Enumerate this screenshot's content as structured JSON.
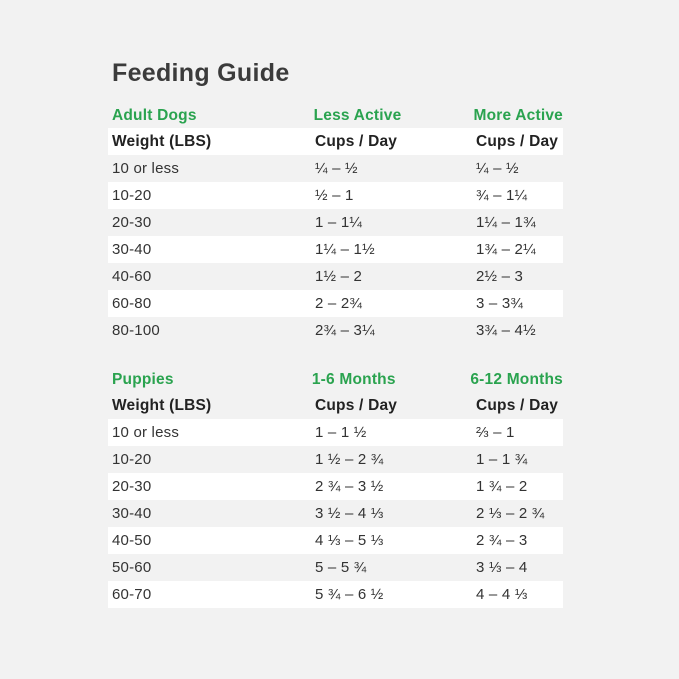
{
  "page": {
    "title": "Feeding Guide",
    "background_color": "#f2f2f2",
    "accent_green": "#2aa34f"
  },
  "tables": [
    {
      "section": "Adult Dogs",
      "col2_header": "Less Active",
      "col3_header": "More Active",
      "subheader": {
        "col1": "Weight (LBS)",
        "col2": "Cups / Day",
        "col3": "Cups / Day"
      },
      "rows": [
        {
          "weight": "10 or less",
          "col2": "¼ – ½",
          "col3": "¼ – ½"
        },
        {
          "weight": "10-20",
          "col2": "½ – 1",
          "col3": "¾ – 1¼"
        },
        {
          "weight": "20-30",
          "col2": "1 – 1¼",
          "col3": "1¼ – 1¾"
        },
        {
          "weight": "30-40",
          "col2": "1¼ – 1½",
          "col3": "1¾ – 2¼"
        },
        {
          "weight": "40-60",
          "col2": "1½ – 2",
          "col3": "2½ – 3"
        },
        {
          "weight": "60-80",
          "col2": "2 – 2¾",
          "col3": "3 – 3¾"
        },
        {
          "weight": "80-100",
          "col2": "2¾ – 3¼",
          "col3": "3¾ – 4½"
        }
      ]
    },
    {
      "section": "Puppies",
      "col2_header": "1-6 Months",
      "col3_header": "6-12 Months",
      "subheader": {
        "col1": "Weight (LBS)",
        "col2": "Cups / Day",
        "col3": "Cups / Day"
      },
      "rows": [
        {
          "weight": "10 or less",
          "col2": "1 – 1 ½",
          "col3": "⅔ – 1"
        },
        {
          "weight": "10-20",
          "col2": "1 ½ – 2 ¾",
          "col3": "1 – 1 ¾"
        },
        {
          "weight": "20-30",
          "col2": "2 ¾ – 3 ½",
          "col3": "1 ¾ – 2"
        },
        {
          "weight": "30-40",
          "col2": "3 ½ – 4 ⅓",
          "col3": "2 ⅓ – 2 ¾"
        },
        {
          "weight": "40-50",
          "col2": "4 ⅓ – 5 ⅓",
          "col3": "2 ¾ – 3"
        },
        {
          "weight": "50-60",
          "col2": "5 – 5 ¾",
          "col3": "3 ⅓ – 4"
        },
        {
          "weight": "60-70",
          "col2": "5 ¾ – 6 ½",
          "col3": "4 – 4 ⅓"
        }
      ]
    }
  ]
}
